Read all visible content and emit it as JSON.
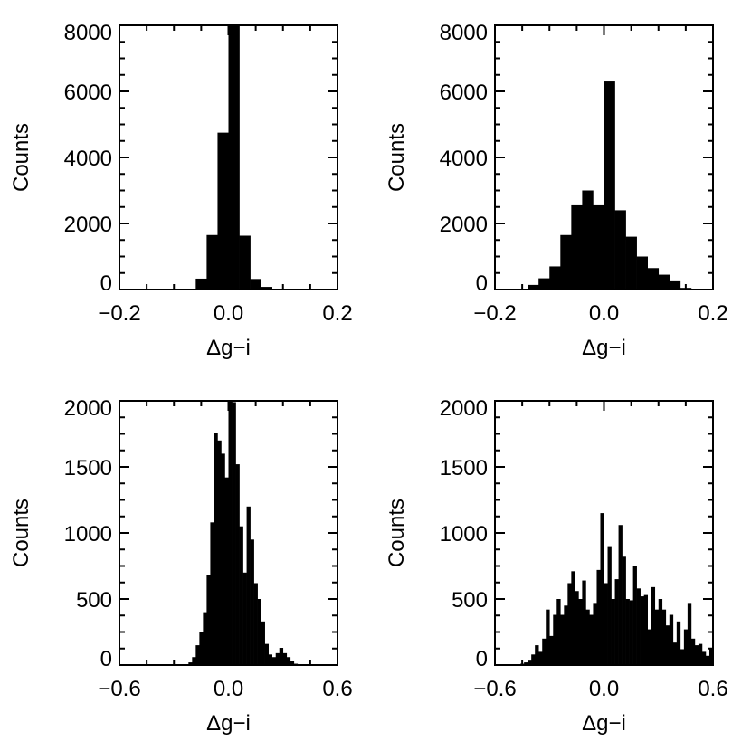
{
  "chart_data": [
    {
      "type": "bar",
      "xlabel": "Δg−i",
      "ylabel": "Counts",
      "xlim": [
        -0.2,
        0.2
      ],
      "ylim": [
        0,
        8000
      ],
      "x_ticks": [
        -0.2,
        0.0,
        0.2
      ],
      "x_tick_labels": [
        "−0.2",
        "0.0",
        "0.2"
      ],
      "y_ticks": [
        0,
        2000,
        4000,
        6000,
        8000
      ],
      "y_tick_labels": [
        "0",
        "2000",
        "4000",
        "6000",
        "8000"
      ],
      "bin_width": 0.02,
      "bin_centers": [
        -0.07,
        -0.05,
        -0.03,
        -0.01,
        0.01,
        0.03,
        0.05,
        0.07,
        0.09
      ],
      "values": [
        20,
        330,
        1650,
        4750,
        8000,
        1630,
        320,
        80,
        10
      ]
    },
    {
      "type": "bar",
      "xlabel": "Δg−i",
      "ylabel": "Counts",
      "xlim": [
        -0.2,
        0.2
      ],
      "ylim": [
        0,
        8000
      ],
      "x_ticks": [
        -0.2,
        0.0,
        0.2
      ],
      "x_tick_labels": [
        "−0.2",
        "0.0",
        "0.2"
      ],
      "y_ticks": [
        0,
        2000,
        4000,
        6000,
        8000
      ],
      "y_tick_labels": [
        "0",
        "2000",
        "4000",
        "6000",
        "8000"
      ],
      "bin_width": 0.02,
      "bin_centers": [
        -0.15,
        -0.13,
        -0.11,
        -0.09,
        -0.07,
        -0.05,
        -0.03,
        -0.01,
        0.01,
        0.03,
        0.05,
        0.07,
        0.09,
        0.11,
        0.13,
        0.15
      ],
      "values": [
        20,
        140,
        340,
        700,
        1650,
        2550,
        3000,
        2550,
        6300,
        2400,
        1600,
        1000,
        650,
        450,
        250,
        50
      ]
    },
    {
      "type": "bar",
      "xlabel": "Δg−i",
      "ylabel": "Counts",
      "xlim": [
        -0.6,
        0.6
      ],
      "ylim": [
        0,
        2000
      ],
      "x_ticks": [
        -0.6,
        0.0,
        0.6
      ],
      "x_tick_labels": [
        "−0.6",
        "0.0",
        "0.6"
      ],
      "y_ticks": [
        0,
        500,
        1000,
        1500,
        2000
      ],
      "y_tick_labels": [
        "0",
        "500",
        "1000",
        "1500",
        "2000"
      ],
      "bin_width": 0.02,
      "bin_centers": [
        -0.21,
        -0.19,
        -0.17,
        -0.15,
        -0.13,
        -0.11,
        -0.09,
        -0.07,
        -0.05,
        -0.03,
        -0.01,
        0.01,
        0.03,
        0.05,
        0.07,
        0.09,
        0.11,
        0.13,
        0.15,
        0.17,
        0.19,
        0.21,
        0.23,
        0.25,
        0.27,
        0.29,
        0.31,
        0.33,
        0.35,
        0.37
      ],
      "values": [
        20,
        60,
        150,
        250,
        400,
        680,
        1080,
        1760,
        1700,
        1600,
        1420,
        2000,
        1990,
        1520,
        1050,
        700,
        1200,
        950,
        620,
        500,
        330,
        160,
        80,
        60,
        90,
        130,
        90,
        60,
        30,
        10
      ]
    },
    {
      "type": "bar",
      "xlabel": "Δg−i",
      "ylabel": "Counts",
      "xlim": [
        -0.6,
        0.6
      ],
      "ylim": [
        0,
        2000
      ],
      "x_ticks": [
        -0.6,
        0.0,
        0.6
      ],
      "x_tick_labels": [
        "−0.6",
        "0.0",
        "0.6"
      ],
      "y_ticks": [
        0,
        500,
        1000,
        1500,
        2000
      ],
      "y_tick_labels": [
        "0",
        "500",
        "1000",
        "1500",
        "2000"
      ],
      "bin_width": 0.02,
      "bin_centers": [
        -0.45,
        -0.43,
        -0.41,
        -0.39,
        -0.37,
        -0.35,
        -0.33,
        -0.31,
        -0.29,
        -0.27,
        -0.25,
        -0.23,
        -0.21,
        -0.19,
        -0.17,
        -0.15,
        -0.13,
        -0.11,
        -0.09,
        -0.07,
        -0.05,
        -0.03,
        -0.01,
        0.01,
        0.03,
        0.05,
        0.07,
        0.09,
        0.11,
        0.13,
        0.15,
        0.17,
        0.19,
        0.21,
        0.23,
        0.25,
        0.27,
        0.29,
        0.31,
        0.33,
        0.35,
        0.37,
        0.39,
        0.41,
        0.43,
        0.45,
        0.47,
        0.49,
        0.51,
        0.53,
        0.55,
        0.57,
        0.59
      ],
      "values": [
        10,
        20,
        40,
        80,
        150,
        100,
        200,
        420,
        220,
        380,
        500,
        380,
        450,
        620,
        710,
        560,
        500,
        640,
        420,
        380,
        470,
        720,
        1150,
        620,
        900,
        500,
        650,
        1060,
        820,
        500,
        490,
        750,
        580,
        520,
        530,
        270,
        590,
        420,
        500,
        420,
        300,
        380,
        170,
        330,
        120,
        270,
        470,
        200,
        150,
        160,
        100,
        70,
        130
      ]
    }
  ]
}
